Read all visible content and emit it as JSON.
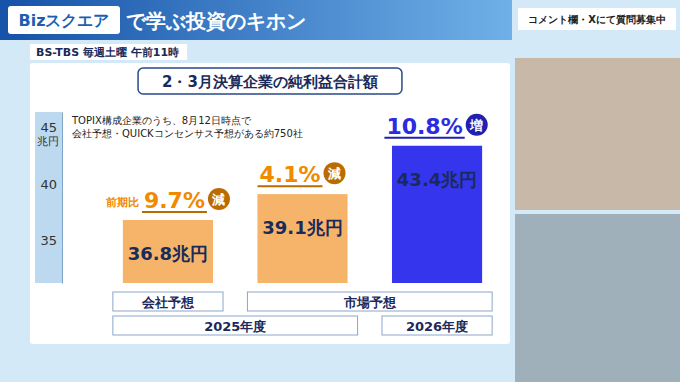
{
  "page": {
    "banner_brand": "Bizスクエア",
    "banner_title": "で学ぶ投資のキホン",
    "schedule": "BS-TBS 毎週土曜 午前11時",
    "notice": "コメント欄・Xにて質問募集中"
  },
  "chart_data": {
    "type": "bar",
    "title": "2・3月決算企業の純利益合計額",
    "note": [
      "TOPIX構成企業のうち、8月12日時点で",
      "会社予想・QUICKコンセンサス予想がある約750社"
    ],
    "ylabel": "兆円",
    "categories": [
      null,
      null,
      null
    ],
    "values": [
      36.8,
      39.1,
      43.4
    ],
    "value_labels": [
      "36.8兆円",
      "39.1兆円",
      "43.4兆円"
    ],
    "data_labels": true,
    "colors": [
      "#f5b469",
      "#f5b469",
      "#3535ee"
    ],
    "ylim": [
      31.2,
      46.4
    ],
    "yticks": [
      35,
      40,
      45
    ],
    "changes": [
      {
        "prefix": "前期比",
        "label": "9.7%",
        "word": "減",
        "color": "#f08a00"
      },
      {
        "label": "4.1%",
        "word": "減",
        "color": "#f08a00"
      },
      {
        "label": "10.8%",
        "word": "増",
        "color": "#2b2be0"
      }
    ],
    "group_rows": [
      [
        {
          "label": "会社予想",
          "from": 0,
          "to": 0
        },
        {
          "label": "市場予想",
          "from": 1,
          "to": 2
        }
      ],
      [
        {
          "label": "2025年度",
          "from": 0,
          "to": 1
        },
        {
          "label": "2026年度",
          "from": 2,
          "to": 2
        }
      ]
    ]
  }
}
